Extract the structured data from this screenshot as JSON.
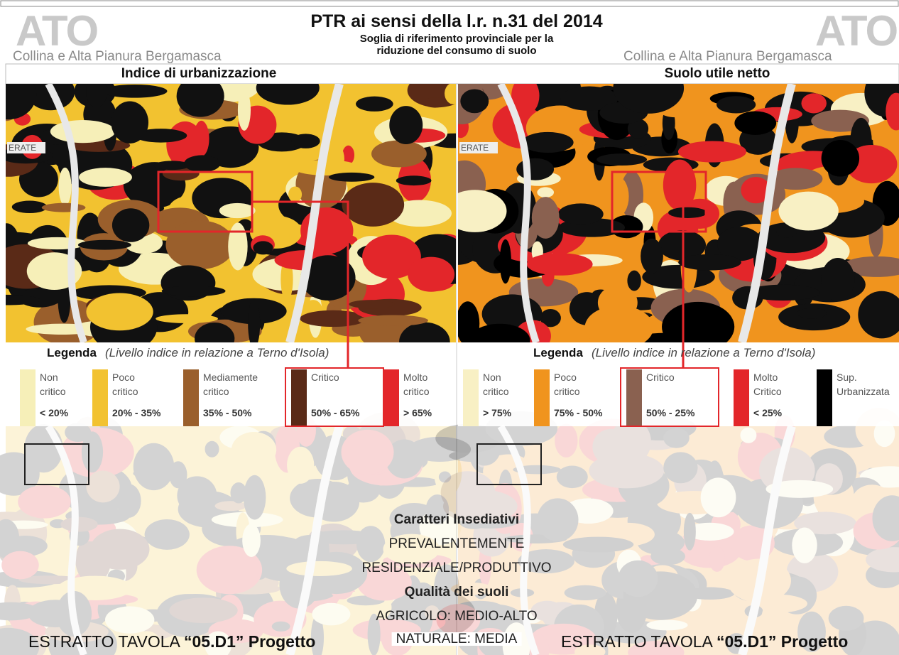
{
  "header": {
    "title": "PTR ai sensi della l.r. n.31 del 2014",
    "subtitle_lines": [
      "Soglia di riferimento provinciale per la",
      "riduzione del consumo di suolo"
    ],
    "ato_left": "ATO",
    "ato_right": "ATO",
    "ato_name_left": "Collina e Alta Pianura Bergamasca",
    "ato_name_right": "Collina e Alta Pianura Bergamasca"
  },
  "panels": [
    {
      "title": "Indice di urbanizzazione",
      "map_label": "ERATE",
      "legend": {
        "title": "Legenda",
        "subtitle": "(Livello indice in relazione a Terno d'Isola)",
        "items": [
          {
            "lines": [
              "Non",
              "critico"
            ],
            "range": "< 20%",
            "color": "#f6efb8",
            "highlight": false
          },
          {
            "lines": [
              "Poco",
              "critico"
            ],
            "range": "20% - 35%",
            "color": "#f2c230",
            "highlight": false
          },
          {
            "lines": [
              "Mediamente",
              "critico"
            ],
            "range": "35% - 50%",
            "color": "#9a5f2c",
            "highlight": false
          },
          {
            "lines": [
              "Critico"
            ],
            "range": "50% - 65%",
            "color": "#5a2a17",
            "highlight": true
          },
          {
            "lines": [
              "Molto",
              "critico"
            ],
            "range": "> 65%",
            "color": "#e3262a",
            "highlight": false
          }
        ]
      },
      "footer": "ESTRATTO TAVOLA ",
      "footer_bold": "“05.D1” Progetto"
    },
    {
      "title": "Suolo utile netto",
      "map_label": "ERATE",
      "legend": {
        "title": "Legenda",
        "subtitle": "(Livello indice in relazione a Terno d'Isola)",
        "items": [
          {
            "lines": [
              "Non",
              "critico"
            ],
            "range": "> 75%",
            "color": "#f8f0c4",
            "highlight": false
          },
          {
            "lines": [
              "Poco",
              "critico"
            ],
            "range": "75% - 50%",
            "color": "#f0941e",
            "highlight": false
          },
          {
            "lines": [
              "Critico"
            ],
            "range": "50% - 25%",
            "color": "#8a6150",
            "highlight": true
          },
          {
            "lines": [
              "Molto",
              "Critico"
            ],
            "range": "< 25%",
            "color": "#e3262a",
            "highlight": false
          },
          {
            "lines": [
              "Sup.",
              "Urbanizzata"
            ],
            "range": null,
            "color": "#000000",
            "highlight": false
          }
        ]
      },
      "footer": "ESTRATTO TAVOLA ",
      "footer_bold": "“05.D1” Progetto"
    }
  ],
  "center": {
    "heading1": "Caratteri Insediativi",
    "lines1": [
      "PREVALENTEMENTE",
      "RESIDENZIALE/PRODUTTIVO"
    ],
    "heading2": "Qualità dei suoli",
    "lines2": [
      "AGRICOLO: MEDIO-ALTO",
      "NATURALE: MEDIA"
    ]
  }
}
